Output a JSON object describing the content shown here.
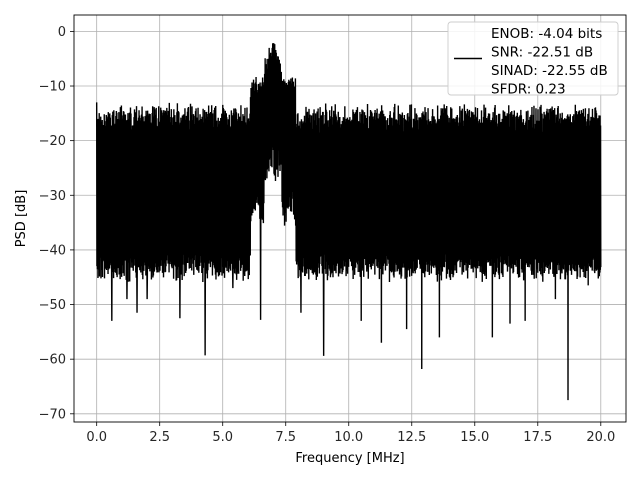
{
  "chart_data": {
    "type": "line",
    "title": "",
    "xlabel": "Frequency [MHz]",
    "ylabel": "PSD [dB]",
    "xlim": [
      -0.9,
      21.0
    ],
    "ylim": [
      -71.5,
      3.0
    ],
    "xticks": [
      0.0,
      2.5,
      5.0,
      7.5,
      10.0,
      12.5,
      15.0,
      17.5,
      20.0
    ],
    "xtick_labels": [
      "0.0",
      "2.5",
      "5.0",
      "7.5",
      "10.0",
      "12.5",
      "15.0",
      "17.5",
      "20.0"
    ],
    "yticks": [
      0,
      -10,
      -20,
      -30,
      -40,
      -50,
      -60,
      -70
    ],
    "ytick_labels": [
      "0",
      "−10",
      "−20",
      "−30",
      "−40",
      "−50",
      "−60",
      "−70"
    ],
    "grid": true,
    "legend": "top-right",
    "series": [
      {
        "name": "ENOB: -4.04 bits\nSNR: -22.51 dB\nSINAD: -22.55 dB\nSFDR: 0.23",
        "color": "#000000",
        "x_range": [
          0.0,
          20.0
        ],
        "noise_floor_upper_db": -17,
        "noise_floor_lower_db": -42,
        "peak": {
          "x": 7.0,
          "y": -0.2
        },
        "spikes": [
          {
            "x": 0.0,
            "y": -6
          },
          {
            "x": 0.6,
            "y": -53
          },
          {
            "x": 1.2,
            "y": -49
          },
          {
            "x": 1.6,
            "y": -51.5
          },
          {
            "x": 2.0,
            "y": -49
          },
          {
            "x": 3.3,
            "y": -52.5
          },
          {
            "x": 4.3,
            "y": -59.3
          },
          {
            "x": 5.4,
            "y": -47
          },
          {
            "x": 6.5,
            "y": -52.8
          },
          {
            "x": 8.1,
            "y": -51.5
          },
          {
            "x": 9.0,
            "y": -59.4
          },
          {
            "x": 10.5,
            "y": -53
          },
          {
            "x": 11.3,
            "y": -57
          },
          {
            "x": 12.3,
            "y": -54.5
          },
          {
            "x": 12.9,
            "y": -61.8
          },
          {
            "x": 13.6,
            "y": -56
          },
          {
            "x": 15.7,
            "y": -56
          },
          {
            "x": 16.4,
            "y": -53.5
          },
          {
            "x": 17.0,
            "y": -53
          },
          {
            "x": 18.2,
            "y": -49
          },
          {
            "x": 18.7,
            "y": -67.5
          },
          {
            "x": 19.5,
            "y": -46.5
          }
        ],
        "sample_count": 2000
      }
    ]
  }
}
